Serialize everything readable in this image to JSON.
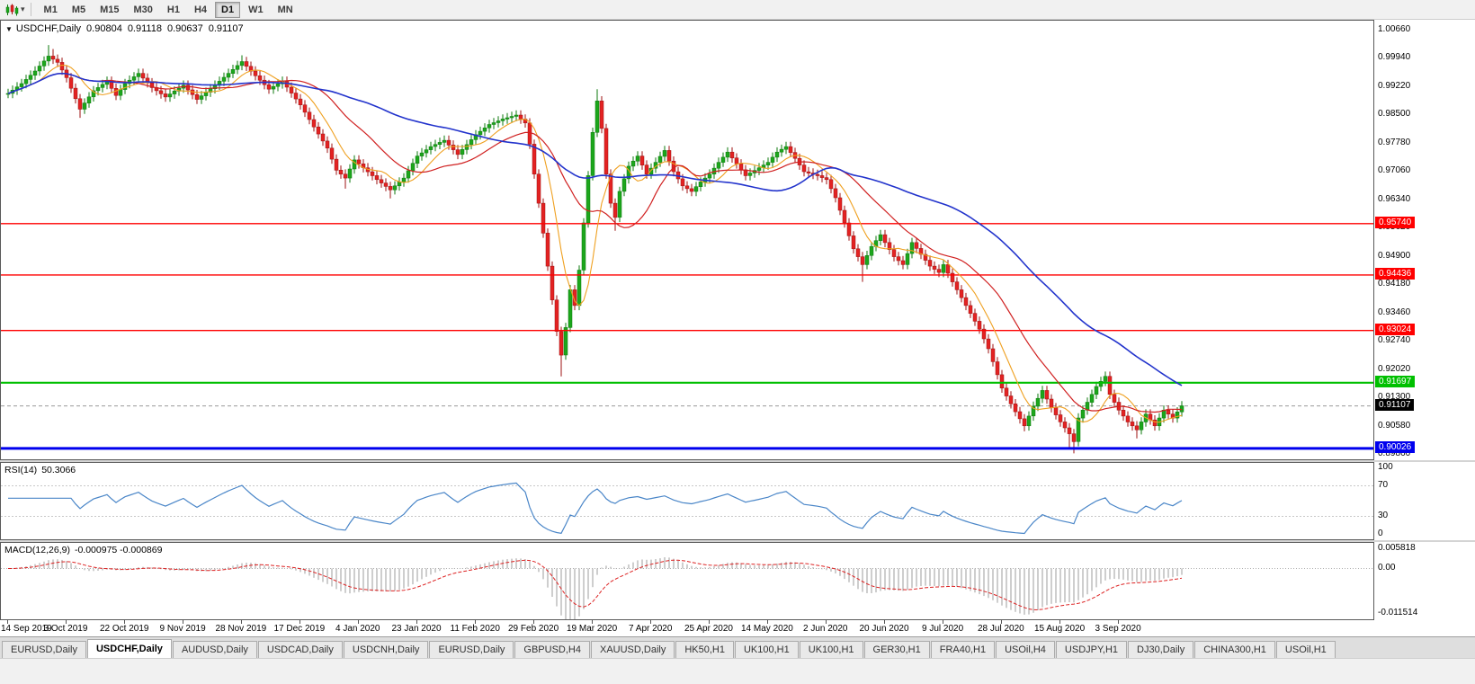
{
  "toolbar": {
    "timeframes": [
      "M1",
      "M5",
      "M15",
      "M30",
      "H1",
      "H4",
      "D1",
      "W1",
      "MN"
    ],
    "active_timeframe": "D1"
  },
  "icons": {
    "one_click": "▼",
    "chart_dropdown": "▾"
  },
  "chart_data": {
    "type": "candlestick",
    "title": "USDCHF,Daily",
    "ohlc_display": {
      "open": "0.90804",
      "high": "0.91118",
      "low": "0.90637",
      "close": "0.91107"
    },
    "current_price": "0.91107",
    "price_min": 0.8975,
    "price_max": 1.009,
    "price_axis_labels": [
      "1.00660",
      "0.99940",
      "0.99220",
      "0.98500",
      "0.97780",
      "0.97060",
      "0.96340",
      "0.95620",
      "0.94900",
      "0.94180",
      "0.93460",
      "0.92740",
      "0.92020",
      "0.91300",
      "0.90580",
      "0.89860"
    ],
    "horizontal_levels": [
      {
        "price": 0.9574,
        "label": "0.95740",
        "color": "#ff0000",
        "width": 1.4
      },
      {
        "price": 0.94436,
        "label": "0.94436",
        "color": "#ff0000",
        "width": 1.4
      },
      {
        "price": 0.93024,
        "label": "0.93024",
        "color": "#ff0000",
        "width": 1.4
      },
      {
        "price": 0.91697,
        "label": "0.91697",
        "color": "#00c000",
        "width": 2.2
      },
      {
        "price": 0.90026,
        "label": "0.90026",
        "color": "#0000ee",
        "width": 3
      }
    ],
    "date_labels": [
      "14 Sep 2019",
      "3 Oct 2019",
      "22 Oct 2019",
      "9 Nov 2019",
      "28 Nov 2019",
      "17 Dec 2019",
      "4 Jan 2020",
      "23 Jan 2020",
      "11 Feb 2020",
      "29 Feb 2020",
      "19 Mar 2020",
      "7 Apr 2020",
      "25 Apr 2020",
      "14 May 2020",
      "2 Jun 2020",
      "20 Jun 2020",
      "9 Jul 2020",
      "28 Jul 2020",
      "15 Aug 2020",
      "3 Sep 2020"
    ],
    "candle_count": 262,
    "candles_per_date_label": 13,
    "default_wick": 0.0012,
    "close_waypoints": [
      [
        0,
        0.9905
      ],
      [
        3,
        0.993
      ],
      [
        6,
        0.9962
      ],
      [
        9,
        1.0
      ],
      [
        11,
        0.9984
      ],
      [
        13,
        0.9945
      ],
      [
        16,
        0.9865
      ],
      [
        19,
        0.9912
      ],
      [
        22,
        0.9936
      ],
      [
        24,
        0.99
      ],
      [
        26,
        0.993
      ],
      [
        29,
        0.9956
      ],
      [
        32,
        0.992
      ],
      [
        35,
        0.9896
      ],
      [
        39,
        0.9926
      ],
      [
        42,
        0.989
      ],
      [
        46,
        0.9926
      ],
      [
        49,
        0.9956
      ],
      [
        52,
        0.9986
      ],
      [
        55,
        0.995
      ],
      [
        58,
        0.9916
      ],
      [
        61,
        0.9936
      ],
      [
        65,
        0.9876
      ],
      [
        68,
        0.982
      ],
      [
        71,
        0.9766
      ],
      [
        73,
        0.971
      ],
      [
        75,
        0.969
      ],
      [
        77,
        0.9736
      ],
      [
        79,
        0.9716
      ],
      [
        82,
        0.9686
      ],
      [
        85,
        0.966
      ],
      [
        88,
        0.969
      ],
      [
        91,
        0.9746
      ],
      [
        94,
        0.977
      ],
      [
        97,
        0.9786
      ],
      [
        100,
        0.975
      ],
      [
        104,
        0.98
      ],
      [
        107,
        0.9826
      ],
      [
        110,
        0.984
      ],
      [
        113,
        0.985
      ],
      [
        115,
        0.983
      ],
      [
        116,
        0.9776
      ],
      [
        117,
        0.97
      ],
      [
        118,
        0.9626
      ],
      [
        119,
        0.955
      ],
      [
        120,
        0.9466
      ],
      [
        121,
        0.938
      ],
      [
        122,
        0.93
      ],
      [
        123,
        0.924
      ],
      [
        124,
        0.931
      ],
      [
        125,
        0.9406
      ],
      [
        126,
        0.9366
      ],
      [
        127,
        0.9456
      ],
      [
        128,
        0.9576
      ],
      [
        129,
        0.9696
      ],
      [
        130,
        0.9806
      ],
      [
        131,
        0.9886
      ],
      [
        132,
        0.9816
      ],
      [
        133,
        0.97
      ],
      [
        134,
        0.9626
      ],
      [
        135,
        0.959
      ],
      [
        136,
        0.9656
      ],
      [
        138,
        0.972
      ],
      [
        140,
        0.9746
      ],
      [
        142,
        0.97
      ],
      [
        144,
        0.973
      ],
      [
        146,
        0.976
      ],
      [
        148,
        0.9706
      ],
      [
        150,
        0.967
      ],
      [
        152,
        0.9656
      ],
      [
        154,
        0.968
      ],
      [
        156,
        0.97
      ],
      [
        158,
        0.973
      ],
      [
        160,
        0.9756
      ],
      [
        162,
        0.9726
      ],
      [
        164,
        0.9696
      ],
      [
        167,
        0.9716
      ],
      [
        169,
        0.973
      ],
      [
        171,
        0.9756
      ],
      [
        173,
        0.977
      ],
      [
        175,
        0.974
      ],
      [
        177,
        0.9706
      ],
      [
        180,
        0.9696
      ],
      [
        182,
        0.9686
      ],
      [
        184,
        0.964
      ],
      [
        186,
        0.9576
      ],
      [
        188,
        0.951
      ],
      [
        190,
        0.947
      ],
      [
        192,
        0.9516
      ],
      [
        194,
        0.9546
      ],
      [
        195,
        0.9526
      ],
      [
        197,
        0.949
      ],
      [
        199,
        0.947
      ],
      [
        201,
        0.9526
      ],
      [
        203,
        0.9496
      ],
      [
        205,
        0.9466
      ],
      [
        207,
        0.945
      ],
      [
        208,
        0.947
      ],
      [
        210,
        0.9426
      ],
      [
        212,
        0.9386
      ],
      [
        214,
        0.9346
      ],
      [
        216,
        0.9306
      ],
      [
        218,
        0.9256
      ],
      [
        220,
        0.919
      ],
      [
        221,
        0.9156
      ],
      [
        222,
        0.9136
      ],
      [
        224,
        0.9096
      ],
      [
        226,
        0.906
      ],
      [
        228,
        0.911
      ],
      [
        230,
        0.915
      ],
      [
        232,
        0.9106
      ],
      [
        234,
        0.907
      ],
      [
        236,
        0.904
      ],
      [
        237,
        0.902
      ],
      [
        238,
        0.908
      ],
      [
        240,
        0.912
      ],
      [
        242,
        0.916
      ],
      [
        244,
        0.9186
      ],
      [
        245,
        0.914
      ],
      [
        247,
        0.91
      ],
      [
        249,
        0.907
      ],
      [
        251,
        0.905
      ],
      [
        253,
        0.909
      ],
      [
        255,
        0.906
      ],
      [
        257,
        0.91
      ],
      [
        259,
        0.908
      ],
      [
        261,
        0.9111
      ]
    ],
    "wick_spikes": [
      [
        9,
        "H",
        1.0028
      ],
      [
        10,
        "H",
        1.0018
      ],
      [
        16,
        "L",
        0.9843
      ],
      [
        52,
        "H",
        1.0002
      ],
      [
        75,
        "L",
        0.9663
      ],
      [
        85,
        "L",
        0.9638
      ],
      [
        123,
        "L",
        0.9186
      ],
      [
        124,
        "L",
        0.925
      ],
      [
        131,
        "H",
        0.9916
      ],
      [
        132,
        "H",
        0.9878
      ],
      [
        135,
        "L",
        0.9556
      ],
      [
        190,
        "L",
        0.9426
      ],
      [
        226,
        "L",
        0.9046
      ],
      [
        236,
        "L",
        0.9002
      ],
      [
        237,
        "L",
        0.899
      ],
      [
        244,
        "H",
        0.9196
      ],
      [
        251,
        "L",
        0.9028
      ]
    ],
    "colors": {
      "up": "#1ca61c",
      "up_border": "#0d7a0d",
      "down": "#e32222",
      "down_border": "#9e1212",
      "ma_fast": "#efa020",
      "ma_mid": "#d02020",
      "ma_slow": "#2233cc",
      "current_line": "#999999",
      "current_tag_bg": "#000000"
    },
    "indicators": {
      "rsi": {
        "label": "RSI(14)",
        "value": "50.3066",
        "period": 14,
        "color": "#4a86c8",
        "levels": [
          70,
          30
        ],
        "axis_labels": [
          "100",
          "70",
          "30",
          "0"
        ]
      },
      "macd": {
        "label": "MACD(12,26,9)",
        "values_text": "-0.000975 -0.000869",
        "fast": 12,
        "slow": 26,
        "signal_period": 9,
        "hist_color": "#b9b9b9",
        "signal_color": "#dd2222",
        "axis_labels": [
          "0.005818",
          "0.00",
          "-0.011514"
        ]
      }
    }
  },
  "tabs": {
    "items": [
      "EURUSD,Daily",
      "USDCHF,Daily",
      "AUDUSD,Daily",
      "USDCAD,Daily",
      "USDCNH,Daily",
      "EURUSD,Daily",
      "GBPUSD,H4",
      "XAUUSD,Daily",
      "HK50,H1",
      "UK100,H1",
      "UK100,H1",
      "GER30,H1",
      "FRA40,H1",
      "USOil,H4",
      "USDJPY,H1",
      "DJ30,Daily",
      "CHINA300,H1",
      "USOil,H1"
    ],
    "active_index": 1
  }
}
